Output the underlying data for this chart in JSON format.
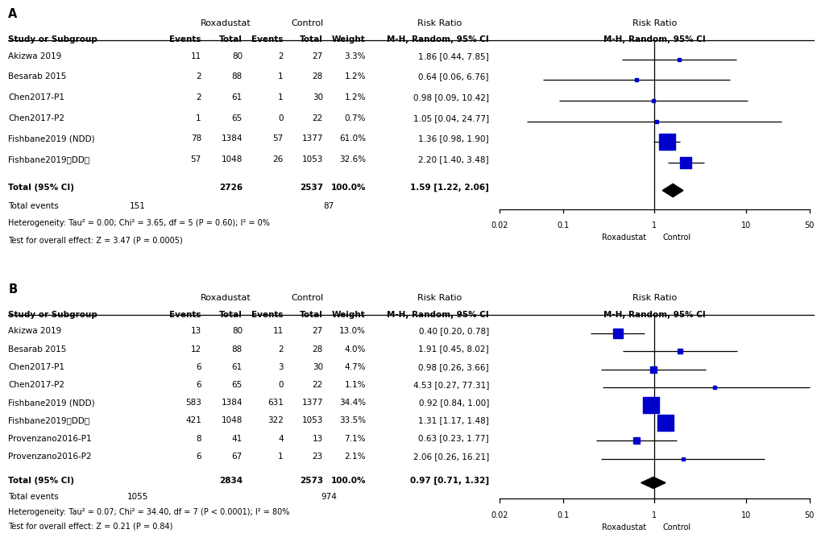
{
  "panel_A": {
    "label": "A",
    "studies": [
      {
        "name": "Akizwa 2019",
        "rox_e": "11",
        "rox_t": "80",
        "con_e": "2",
        "con_t": "27",
        "weight": "3.3%",
        "rr": 1.86,
        "ci_lo": 0.44,
        "ci_hi": 7.85,
        "rr_str": "1.86 [0.44, 7.85]"
      },
      {
        "name": "Besarab 2015",
        "rox_e": "2",
        "rox_t": "88",
        "con_e": "1",
        "con_t": "28",
        "weight": "1.2%",
        "rr": 0.64,
        "ci_lo": 0.06,
        "ci_hi": 6.76,
        "rr_str": "0.64 [0.06, 6.76]"
      },
      {
        "name": "Chen2017-P1",
        "rox_e": "2",
        "rox_t": "61",
        "con_e": "1",
        "con_t": "30",
        "weight": "1.2%",
        "rr": 0.98,
        "ci_lo": 0.09,
        "ci_hi": 10.42,
        "rr_str": "0.98 [0.09, 10.42]"
      },
      {
        "name": "Chen2017-P2",
        "rox_e": "1",
        "rox_t": "65",
        "con_e": "0",
        "con_t": "22",
        "weight": "0.7%",
        "rr": 1.05,
        "ci_lo": 0.04,
        "ci_hi": 24.77,
        "rr_str": "1.05 [0.04, 24.77]"
      },
      {
        "name": "Fishbane2019 (NDD)",
        "rox_e": "78",
        "rox_t": "1384",
        "con_e": "57",
        "con_t": "1377",
        "weight": "61.0%",
        "rr": 1.36,
        "ci_lo": 0.98,
        "ci_hi": 1.9,
        "rr_str": "1.36 [0.98, 1.90]"
      },
      {
        "name": "Fishbane2019（DD）",
        "rox_e": "57",
        "rox_t": "1048",
        "con_e": "26",
        "con_t": "1053",
        "weight": "32.6%",
        "rr": 2.2,
        "ci_lo": 1.4,
        "ci_hi": 3.48,
        "rr_str": "2.20 [1.40, 3.48]"
      }
    ],
    "total_rox": "2726",
    "total_con": "2537",
    "total_events_rox": "151",
    "total_events_con": "87",
    "total_rr": 1.59,
    "total_ci_lo": 1.22,
    "total_ci_hi": 2.06,
    "total_rr_str": "1.59 [1.22, 2.06]",
    "heterogeneity": "Heterogeneity: Tau² = 0.00; Chi² = 3.65, df = 5 (P = 0.60); I² = 0%",
    "overall_effect": "Test for overall effect: Z = 3.47 (P = 0.0005)"
  },
  "panel_B": {
    "label": "B",
    "studies": [
      {
        "name": "Akizwa 2019",
        "rox_e": "13",
        "rox_t": "80",
        "con_e": "11",
        "con_t": "27",
        "weight": "13.0%",
        "rr": 0.4,
        "ci_lo": 0.2,
        "ci_hi": 0.78,
        "rr_str": "0.40 [0.20, 0.78]"
      },
      {
        "name": "Besarab 2015",
        "rox_e": "12",
        "rox_t": "88",
        "con_e": "2",
        "con_t": "28",
        "weight": "4.0%",
        "rr": 1.91,
        "ci_lo": 0.45,
        "ci_hi": 8.02,
        "rr_str": "1.91 [0.45, 8.02]"
      },
      {
        "name": "Chen2017-P1",
        "rox_e": "6",
        "rox_t": "61",
        "con_e": "3",
        "con_t": "30",
        "weight": "4.7%",
        "rr": 0.98,
        "ci_lo": 0.26,
        "ci_hi": 3.66,
        "rr_str": "0.98 [0.26, 3.66]"
      },
      {
        "name": "Chen2017-P2",
        "rox_e": "6",
        "rox_t": "65",
        "con_e": "0",
        "con_t": "22",
        "weight": "1.1%",
        "rr": 4.53,
        "ci_lo": 0.27,
        "ci_hi": 77.31,
        "rr_str": "4.53 [0.27, 77.31]"
      },
      {
        "name": "Fishbane2019 (NDD)",
        "rox_e": "583",
        "rox_t": "1384",
        "con_e": "631",
        "con_t": "1377",
        "weight": "34.4%",
        "rr": 0.92,
        "ci_lo": 0.84,
        "ci_hi": 1.0,
        "rr_str": "0.92 [0.84, 1.00]"
      },
      {
        "name": "Fishbane2019（DD）",
        "rox_e": "421",
        "rox_t": "1048",
        "con_e": "322",
        "con_t": "1053",
        "weight": "33.5%",
        "rr": 1.31,
        "ci_lo": 1.17,
        "ci_hi": 1.48,
        "rr_str": "1.31 [1.17, 1.48]"
      },
      {
        "name": "Provenzano2016-P1",
        "rox_e": "8",
        "rox_t": "41",
        "con_e": "4",
        "con_t": "13",
        "weight": "7.1%",
        "rr": 0.63,
        "ci_lo": 0.23,
        "ci_hi": 1.77,
        "rr_str": "0.63 [0.23, 1.77]"
      },
      {
        "name": "Provenzano2016-P2",
        "rox_e": "6",
        "rox_t": "67",
        "con_e": "1",
        "con_t": "23",
        "weight": "2.1%",
        "rr": 2.06,
        "ci_lo": 0.26,
        "ci_hi": 16.21,
        "rr_str": "2.06 [0.26, 16.21]"
      }
    ],
    "total_rox": "2834",
    "total_con": "2573",
    "total_events_rox": "1055",
    "total_events_con": "974",
    "total_rr": 0.97,
    "total_ci_lo": 0.71,
    "total_ci_hi": 1.32,
    "total_rr_str": "0.97 [0.71, 1.32]",
    "heterogeneity": "Heterogeneity: Tau² = 0.07; Chi² = 34.40, df = 7 (P < 0.0001); I² = 80%",
    "overall_effect": "Test for overall effect: Z = 0.21 (P = 0.84)"
  },
  "blue_color": "#0000CC",
  "black_color": "#000000",
  "xmin": 0.02,
  "xmax": 50,
  "xticks": [
    0.02,
    0.1,
    1,
    10,
    50
  ],
  "xtick_labels": [
    "0.02",
    "0.1",
    "1",
    "10",
    "50"
  ]
}
